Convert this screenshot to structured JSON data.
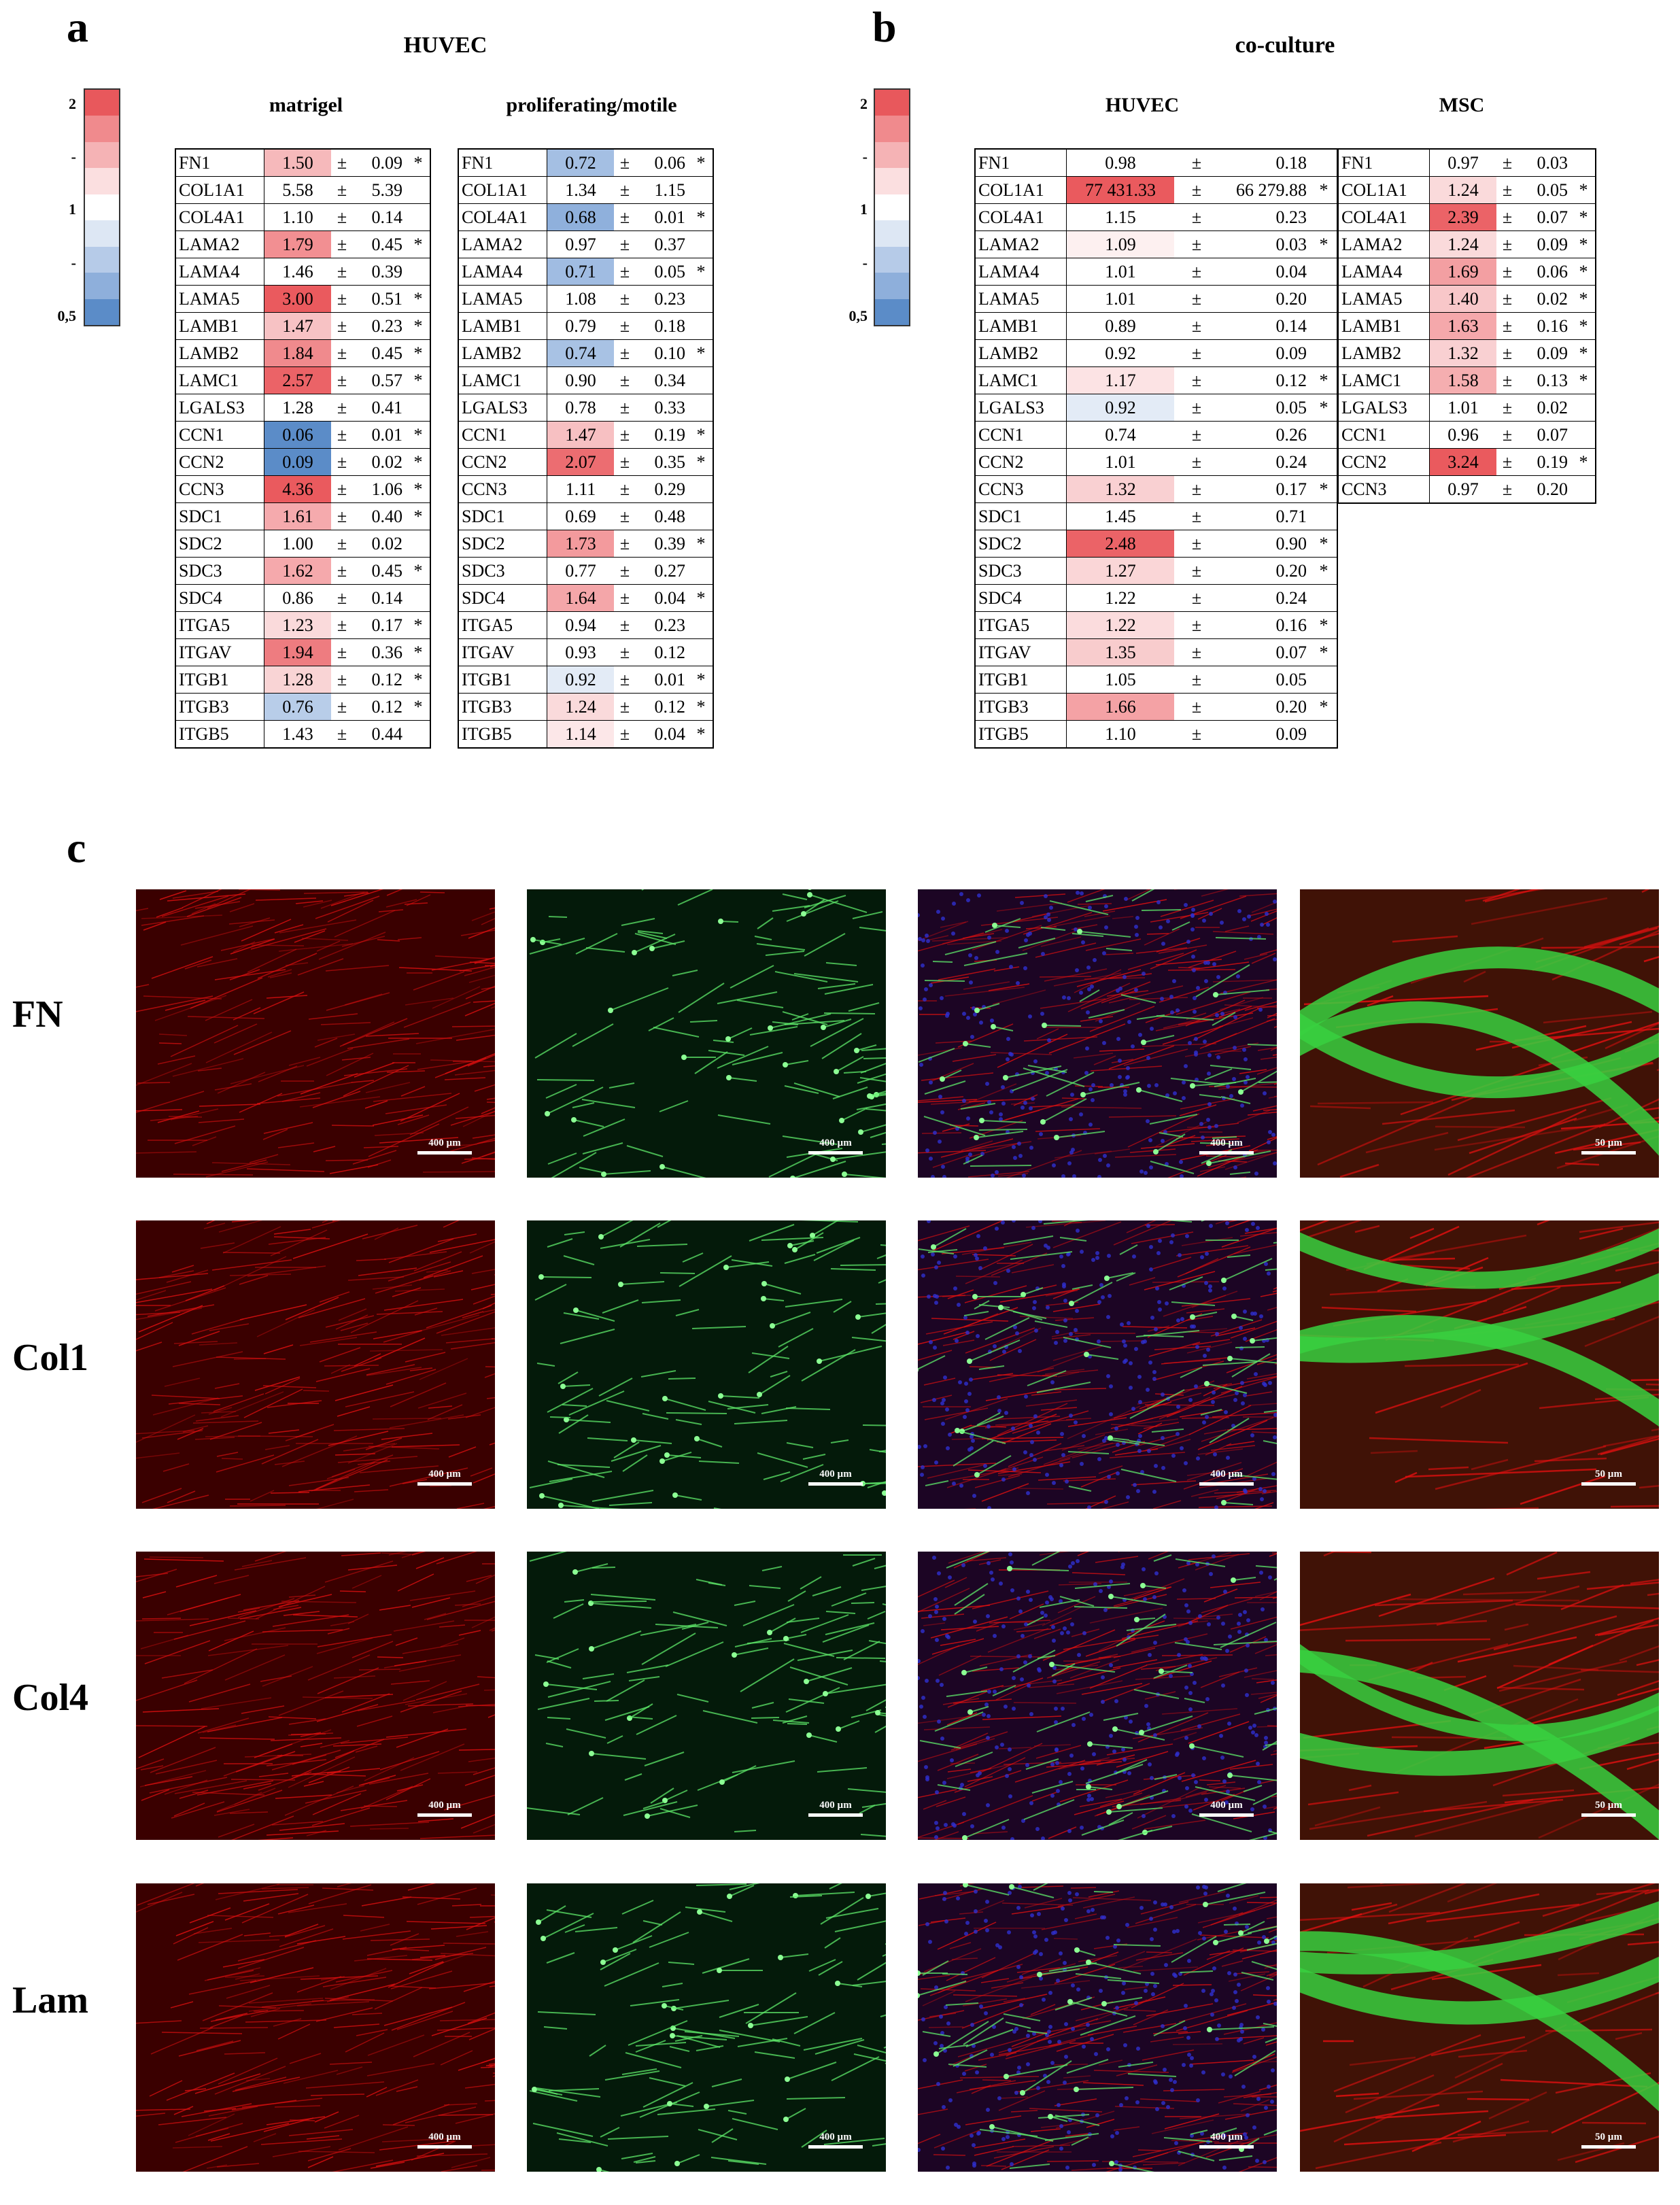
{
  "panel_labels": {
    "a": "a",
    "b": "b",
    "c": "c"
  },
  "panel_a": {
    "title": "HUVEC",
    "scale": {
      "top": "2",
      "upper_mid": "-",
      "mid": "1",
      "lower_mid": "-",
      "bottom": "0,5"
    },
    "tables": [
      {
        "subtitle": "matrigel",
        "rows": [
          {
            "gene": "FN1",
            "value": "1.50",
            "sd": "0.09",
            "sig": "*",
            "color": "#f6b9bb"
          },
          {
            "gene": "COL1A1",
            "value": "5.58",
            "sd": "5.39",
            "sig": "",
            "color": ""
          },
          {
            "gene": "COL4A1",
            "value": "1.10",
            "sd": "0.14",
            "sig": "",
            "color": ""
          },
          {
            "gene": "LAMA2",
            "value": "1.79",
            "sd": "0.45",
            "sig": "*",
            "color": "#f28f92"
          },
          {
            "gene": "LAMA4",
            "value": "1.46",
            "sd": "0.39",
            "sig": "",
            "color": ""
          },
          {
            "gene": "LAMA5",
            "value": "3.00",
            "sd": "0.51",
            "sig": "*",
            "color": "#ea5a5e"
          },
          {
            "gene": "LAMB1",
            "value": "1.47",
            "sd": "0.23",
            "sig": "*",
            "color": "#f7c2c4"
          },
          {
            "gene": "LAMB2",
            "value": "1.84",
            "sd": "0.45",
            "sig": "*",
            "color": "#f08a8d"
          },
          {
            "gene": "LAMC1",
            "value": "2.57",
            "sd": "0.57",
            "sig": "*",
            "color": "#eb6367"
          },
          {
            "gene": "LGALS3",
            "value": "1.28",
            "sd": "0.41",
            "sig": "",
            "color": ""
          },
          {
            "gene": "CCN1",
            "value": "0.06",
            "sd": "0.01",
            "sig": "*",
            "color": "#5b8cc8"
          },
          {
            "gene": "CCN2",
            "value": "0.09",
            "sd": "0.02",
            "sig": "*",
            "color": "#5b8cc8"
          },
          {
            "gene": "CCN3",
            "value": "4.36",
            "sd": "1.06",
            "sig": "*",
            "color": "#ea5a5e"
          },
          {
            "gene": "SDC1",
            "value": "1.61",
            "sd": "0.40",
            "sig": "*",
            "color": "#f5aaad"
          },
          {
            "gene": "SDC2",
            "value": "1.00",
            "sd": "0.02",
            "sig": "",
            "color": ""
          },
          {
            "gene": "SDC3",
            "value": "1.62",
            "sd": "0.45",
            "sig": "*",
            "color": "#f5a9ac"
          },
          {
            "gene": "SDC4",
            "value": "0.86",
            "sd": "0.14",
            "sig": "",
            "color": ""
          },
          {
            "gene": "ITGA5",
            "value": "1.23",
            "sd": "0.17",
            "sig": "*",
            "color": "#fadadb"
          },
          {
            "gene": "ITGAV",
            "value": "1.94",
            "sd": "0.36",
            "sig": "*",
            "color": "#ee7c80"
          },
          {
            "gene": "ITGB1",
            "value": "1.28",
            "sd": "0.12",
            "sig": "*",
            "color": "#f9d4d5"
          },
          {
            "gene": "ITGB3",
            "value": "0.76",
            "sd": "0.12",
            "sig": "*",
            "color": "#b8cde9"
          },
          {
            "gene": "ITGB5",
            "value": "1.43",
            "sd": "0.44",
            "sig": "",
            "color": ""
          }
        ]
      },
      {
        "subtitle": "proliferating/motile",
        "rows": [
          {
            "gene": "FN1",
            "value": "0.72",
            "sd": "0.06",
            "sig": "*",
            "color": "#a4bfe3"
          },
          {
            "gene": "COL1A1",
            "value": "1.34",
            "sd": "1.15",
            "sig": "",
            "color": ""
          },
          {
            "gene": "COL4A1",
            "value": "0.68",
            "sd": "0.01",
            "sig": "*",
            "color": "#8fb0dc"
          },
          {
            "gene": "LAMA2",
            "value": "0.97",
            "sd": "0.37",
            "sig": "",
            "color": ""
          },
          {
            "gene": "LAMA4",
            "value": "0.71",
            "sd": "0.05",
            "sig": "*",
            "color": "#a0bce2"
          },
          {
            "gene": "LAMA5",
            "value": "1.08",
            "sd": "0.23",
            "sig": "",
            "color": ""
          },
          {
            "gene": "LAMB1",
            "value": "0.79",
            "sd": "0.18",
            "sig": "",
            "color": ""
          },
          {
            "gene": "LAMB2",
            "value": "0.74",
            "sd": "0.10",
            "sig": "*",
            "color": "#a8c2e4"
          },
          {
            "gene": "LAMC1",
            "value": "0.90",
            "sd": "0.34",
            "sig": "",
            "color": ""
          },
          {
            "gene": "LGALS3",
            "value": "0.78",
            "sd": "0.33",
            "sig": "",
            "color": ""
          },
          {
            "gene": "CCN1",
            "value": "1.47",
            "sd": "0.19",
            "sig": "*",
            "color": "#f7c0c2"
          },
          {
            "gene": "CCN2",
            "value": "2.07",
            "sd": "0.35",
            "sig": "*",
            "color": "#ec6d71"
          },
          {
            "gene": "CCN3",
            "value": "1.11",
            "sd": "0.29",
            "sig": "",
            "color": ""
          },
          {
            "gene": "SDC1",
            "value": "0.69",
            "sd": "0.48",
            "sig": "",
            "color": ""
          },
          {
            "gene": "SDC2",
            "value": "1.73",
            "sd": "0.39",
            "sig": "*",
            "color": "#f39a9d"
          },
          {
            "gene": "SDC3",
            "value": "0.77",
            "sd": "0.27",
            "sig": "",
            "color": ""
          },
          {
            "gene": "SDC4",
            "value": "1.64",
            "sd": "0.04",
            "sig": "*",
            "color": "#f4a6a9"
          },
          {
            "gene": "ITGA5",
            "value": "0.94",
            "sd": "0.23",
            "sig": "",
            "color": ""
          },
          {
            "gene": "ITGAV",
            "value": "0.93",
            "sd": "0.12",
            "sig": "",
            "color": ""
          },
          {
            "gene": "ITGB1",
            "value": "0.92",
            "sd": "0.01",
            "sig": "*",
            "color": "#e3ebf6"
          },
          {
            "gene": "ITGB3",
            "value": "1.24",
            "sd": "0.12",
            "sig": "*",
            "color": "#fadadb"
          },
          {
            "gene": "ITGB5",
            "value": "1.14",
            "sd": "0.04",
            "sig": "*",
            "color": "#fce7e8"
          }
        ]
      }
    ]
  },
  "panel_b": {
    "title": "co-culture",
    "scale": {
      "top": "2",
      "upper_mid": "-",
      "mid": "1",
      "lower_mid": "-",
      "bottom": "0,5"
    },
    "tables": [
      {
        "subtitle": "HUVEC",
        "rows": [
          {
            "gene": "FN1",
            "value": "0.98",
            "sd": "0.18",
            "sig": "",
            "color": ""
          },
          {
            "gene": "COL1A1",
            "value": "77 431.33",
            "sd": "66 279.88",
            "sig": "*",
            "color": "#ea5a5e"
          },
          {
            "gene": "COL4A1",
            "value": "1.15",
            "sd": "0.23",
            "sig": "",
            "color": ""
          },
          {
            "gene": "LAMA2",
            "value": "1.09",
            "sd": "0.03",
            "sig": "*",
            "color": "#fdf0f0"
          },
          {
            "gene": "LAMA4",
            "value": "1.01",
            "sd": "0.04",
            "sig": "",
            "color": ""
          },
          {
            "gene": "LAMA5",
            "value": "1.01",
            "sd": "0.20",
            "sig": "",
            "color": ""
          },
          {
            "gene": "LAMB1",
            "value": "0.89",
            "sd": "0.14",
            "sig": "",
            "color": ""
          },
          {
            "gene": "LAMB2",
            "value": "0.92",
            "sd": "0.09",
            "sig": "",
            "color": ""
          },
          {
            "gene": "LAMC1",
            "value": "1.17",
            "sd": "0.12",
            "sig": "*",
            "color": "#fce3e4"
          },
          {
            "gene": "LGALS3",
            "value": "0.92",
            "sd": "0.05",
            "sig": "*",
            "color": "#e3ebf6"
          },
          {
            "gene": "CCN1",
            "value": "0.74",
            "sd": "0.26",
            "sig": "",
            "color": ""
          },
          {
            "gene": "CCN2",
            "value": "1.01",
            "sd": "0.24",
            "sig": "",
            "color": ""
          },
          {
            "gene": "CCN3",
            "value": "1.32",
            "sd": "0.17",
            "sig": "*",
            "color": "#f9d0d2"
          },
          {
            "gene": "SDC1",
            "value": "1.45",
            "sd": "0.71",
            "sig": "",
            "color": ""
          },
          {
            "gene": "SDC2",
            "value": "2.48",
            "sd": "0.90",
            "sig": "*",
            "color": "#eb6367"
          },
          {
            "gene": "SDC3",
            "value": "1.27",
            "sd": "0.20",
            "sig": "*",
            "color": "#fad6d7"
          },
          {
            "gene": "SDC4",
            "value": "1.22",
            "sd": "0.24",
            "sig": "",
            "color": ""
          },
          {
            "gene": "ITGA5",
            "value": "1.22",
            "sd": "0.16",
            "sig": "*",
            "color": "#fbdcdd"
          },
          {
            "gene": "ITGAV",
            "value": "1.35",
            "sd": "0.07",
            "sig": "*",
            "color": "#f8cccd"
          },
          {
            "gene": "ITGB1",
            "value": "1.05",
            "sd": "0.05",
            "sig": "",
            "color": ""
          },
          {
            "gene": "ITGB3",
            "value": "1.66",
            "sd": "0.20",
            "sig": "*",
            "color": "#f4a2a5"
          },
          {
            "gene": "ITGB5",
            "value": "1.10",
            "sd": "0.09",
            "sig": "",
            "color": ""
          }
        ]
      },
      {
        "subtitle": "MSC",
        "rows": [
          {
            "gene": "FN1",
            "value": "0.97",
            "sd": "0.03",
            "sig": "",
            "color": ""
          },
          {
            "gene": "COL1A1",
            "value": "1.24",
            "sd": "0.05",
            "sig": "*",
            "color": "#fadadb"
          },
          {
            "gene": "COL4A1",
            "value": "2.39",
            "sd": "0.07",
            "sig": "*",
            "color": "#eb6367"
          },
          {
            "gene": "LAMA2",
            "value": "1.24",
            "sd": "0.09",
            "sig": "*",
            "color": "#fadadb"
          },
          {
            "gene": "LAMA4",
            "value": "1.69",
            "sd": "0.06",
            "sig": "*",
            "color": "#f39fa2"
          },
          {
            "gene": "LAMA5",
            "value": "1.40",
            "sd": "0.02",
            "sig": "*",
            "color": "#f8c7c9"
          },
          {
            "gene": "LAMB1",
            "value": "1.63",
            "sd": "0.16",
            "sig": "*",
            "color": "#f5a8ab"
          },
          {
            "gene": "LAMB2",
            "value": "1.32",
            "sd": "0.09",
            "sig": "*",
            "color": "#f9d0d2"
          },
          {
            "gene": "LAMC1",
            "value": "1.58",
            "sd": "0.13",
            "sig": "*",
            "color": "#f5aeb0"
          },
          {
            "gene": "LGALS3",
            "value": "1.01",
            "sd": "0.02",
            "sig": "",
            "color": ""
          },
          {
            "gene": "CCN1",
            "value": "0.96",
            "sd": "0.07",
            "sig": "",
            "color": ""
          },
          {
            "gene": "CCN2",
            "value": "3.24",
            "sd": "0.19",
            "sig": "*",
            "color": "#ea5a5e"
          },
          {
            "gene": "CCN3",
            "value": "0.97",
            "sd": "0.20",
            "sig": "",
            "color": ""
          }
        ]
      }
    ]
  },
  "panel_c": {
    "rows": [
      {
        "label": "FN",
        "scales": [
          "400 µm",
          "400 µm",
          "400 µm",
          "50 µm"
        ]
      },
      {
        "label": "Col1",
        "scales": [
          "400 µm",
          "400 µm",
          "400 µm",
          "50 µm"
        ]
      },
      {
        "label": "Col4",
        "scales": [
          "400 µm",
          "400 µm",
          "400 µm",
          "50 µm"
        ]
      },
      {
        "label": "Lam",
        "scales": [
          "400 µm",
          "400 µm",
          "400 µm",
          "50 µm"
        ]
      }
    ]
  },
  "colors": {
    "scale_gradient": [
      "#e8585c",
      "#f08a8d",
      "#f5b3b5",
      "#fbdfe0",
      "#ffffff",
      "#dde7f4",
      "#b6cbe8",
      "#8eafdb",
      "#5b8cc8"
    ]
  }
}
